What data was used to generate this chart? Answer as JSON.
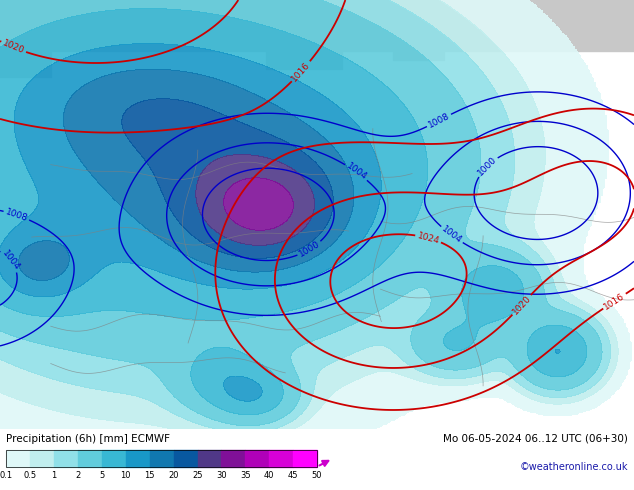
{
  "bottom_left_label": "Precipitation (6h) [mm] ECMWF",
  "bottom_right_label1": "Mo 06-05-2024 06..12 UTC (06+30)",
  "bottom_right_label2": "©weatheronline.co.uk",
  "colorbar_colors": [
    "#e8f8f8",
    "#c0ecec",
    "#90dce8",
    "#60cce0",
    "#30b8d8",
    "#10a0cc",
    "#1080b8",
    "#1060a0",
    "#104080",
    "#502080",
    "#8010a0",
    "#b000c0",
    "#d800e0",
    "#ff00ff"
  ],
  "colorbar_labels": [
    "0.1",
    "0.5",
    "1",
    "2",
    "5",
    "10",
    "15",
    "20",
    "25",
    "30",
    "35",
    "40",
    "45",
    "50"
  ],
  "blue_color": "#0000cc",
  "red_color": "#cc0000",
  "land_green": "#b8e8a0",
  "land_light": "#c8f0b0",
  "sea_blue": "#a8dce8",
  "arctic_gray": "#c8c8c8",
  "background": "#ffffff",
  "fig_width": 6.34,
  "fig_height": 4.9,
  "dpi": 100
}
